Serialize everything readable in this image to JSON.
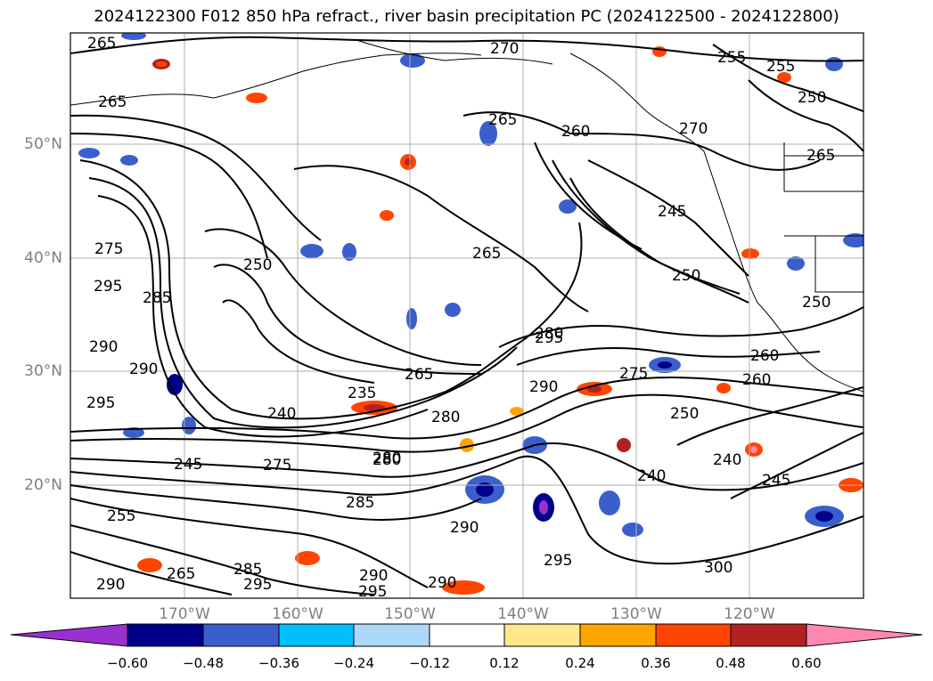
{
  "title": "2024122300 F012 850 hPa refract., river basin precipitation PC (2024122500 - 2024122800)",
  "axes": {
    "lat_labels": [
      "50°N",
      "40°N",
      "30°N",
      "20°N"
    ],
    "lon_labels": [
      "170°W",
      "160°W",
      "150°W",
      "140°W",
      "130°W",
      "120°W"
    ]
  },
  "colorbar": {
    "tick_labels": [
      "−0.60",
      "−0.48",
      "−0.36",
      "−0.24",
      "−0.12",
      "0.12",
      "0.24",
      "0.36",
      "0.48",
      "0.60"
    ],
    "colors": [
      "#9b30d0",
      "#00008b",
      "#3a5fcd",
      "#00bfff",
      "#add8f7",
      "#ffffff",
      "#ffe88a",
      "#ffa500",
      "#ff4500",
      "#b22222",
      "#ff88b0"
    ],
    "extend": "both"
  },
  "contour_labels": [
    "265",
    "265",
    "270",
    "265",
    "260",
    "255",
    "255",
    "250",
    "265",
    "270",
    "265",
    "250",
    "245",
    "250",
    "275",
    "285",
    "295",
    "295",
    "290",
    "290",
    "295",
    "260",
    "265",
    "235",
    "240",
    "250",
    "260",
    "275",
    "280",
    "280",
    "250",
    "240",
    "240",
    "245",
    "245",
    "255",
    "265",
    "275",
    "285",
    "290",
    "295",
    "290",
    "295",
    "290",
    "290",
    "280",
    "285",
    "295",
    "280",
    "300",
    "290"
  ],
  "colors": {
    "contour": "#000000",
    "coast": "#000000",
    "grid": "#b0b0b0"
  }
}
